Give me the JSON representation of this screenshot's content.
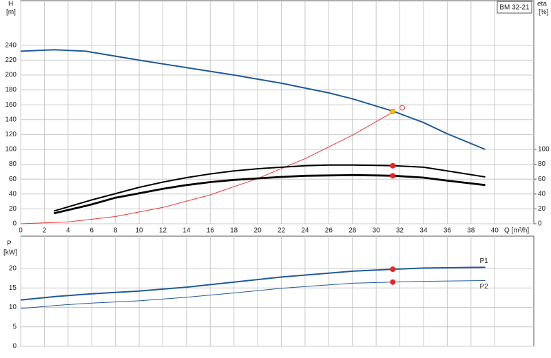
{
  "chart_data": [
    {
      "type": "line",
      "label": "BM 32-21",
      "ylabel": [
        "H",
        "[m]"
      ],
      "y2label": [
        "eta",
        "[%]"
      ],
      "xlabel": "Q [m³/h]",
      "xlim": [
        0,
        43.3
      ],
      "xticks": [
        0,
        2,
        4,
        6,
        8,
        10,
        12,
        14,
        16,
        18,
        20,
        22,
        24,
        26,
        28,
        30,
        32,
        34,
        36,
        38,
        40
      ],
      "ylim": [
        0,
        300
      ],
      "yticks": [
        0,
        20,
        40,
        60,
        80,
        100,
        120,
        140,
        160,
        180,
        200,
        220,
        240
      ],
      "y2lim": [
        0,
        300
      ],
      "y2ticks": [
        0,
        20,
        40,
        60,
        80,
        100
      ],
      "grid": true,
      "series": [
        {
          "color": "#1f5a99",
          "weight": "normal",
          "axis": "y",
          "x": [
            0,
            2.8,
            5.5,
            10,
            14,
            18,
            22,
            26,
            28,
            31.5,
            34,
            36,
            39.2
          ],
          "values": [
            232,
            234,
            232,
            220,
            210,
            200,
            189,
            176,
            168,
            151,
            136,
            121,
            100
          ]
        },
        {
          "color": "#ee3333",
          "weight": "thin",
          "axis": "y",
          "x": [
            0,
            4,
            8,
            12,
            16,
            20,
            24,
            28,
            31.5
          ],
          "values": [
            0,
            2.4,
            9.7,
            21.9,
            38.9,
            60.8,
            87.6,
            119.2,
            151
          ]
        },
        {
          "color": "#000000",
          "weight": "normal",
          "axis": "y2",
          "x": [
            2.8,
            6,
            10,
            12,
            14,
            16,
            18,
            20,
            22,
            24,
            26,
            28,
            30,
            31.5,
            34,
            36,
            39.2
          ],
          "values": [
            17,
            32,
            49,
            56,
            62,
            67,
            71,
            74,
            76,
            78,
            79,
            79,
            78.5,
            78,
            76,
            71,
            63
          ]
        },
        {
          "color": "#000000",
          "weight": "bold",
          "axis": "y2",
          "x": [
            2.8,
            6,
            8,
            10,
            12,
            14,
            16,
            18,
            20,
            22,
            24,
            26,
            28,
            30,
            31.5,
            34,
            36,
            39.2
          ],
          "values": [
            14,
            26,
            35,
            41,
            47,
            52,
            56,
            59,
            61,
            63,
            64.5,
            65,
            65.5,
            65,
            64.5,
            62,
            58,
            52
          ]
        }
      ],
      "markers": [
        {
          "x": 31.4,
          "y": 151,
          "color": "#ffc000",
          "style": "filled",
          "axis": "y"
        },
        {
          "x": 32.2,
          "y": 156,
          "color": "#ee3333",
          "style": "open",
          "axis": "y"
        },
        {
          "x": 31.4,
          "y": 78,
          "color": "#ee2222",
          "style": "filled",
          "axis": "y2"
        },
        {
          "x": 31.4,
          "y": 64.5,
          "color": "#ee2222",
          "style": "filled",
          "axis": "y2"
        }
      ]
    },
    {
      "type": "line",
      "ylabel": [
        "P",
        "[kW]"
      ],
      "xlim": [
        0,
        43.3
      ],
      "ylim": [
        0,
        28.3
      ],
      "yticks": [
        0,
        5,
        10,
        15,
        20
      ],
      "grid": true,
      "series": [
        {
          "name": "P1",
          "color": "#1f5a99",
          "weight": "normal",
          "label_side": "above",
          "x": [
            0,
            3,
            6,
            10,
            14,
            18,
            22,
            26,
            28,
            31.4,
            34,
            39.2
          ],
          "values": [
            11.9,
            12.8,
            13.5,
            14.2,
            15.2,
            16.5,
            17.8,
            18.8,
            19.3,
            19.8,
            20.1,
            20.3
          ]
        },
        {
          "name": "P2",
          "color": "#1f5a99",
          "weight": "thin",
          "label_side": "below",
          "x": [
            0,
            3,
            6,
            10,
            14,
            18,
            22,
            26,
            28,
            31.4,
            34,
            39.2
          ],
          "values": [
            9.7,
            10.5,
            11.1,
            11.7,
            12.6,
            13.7,
            14.9,
            15.8,
            16.2,
            16.5,
            16.7,
            16.9
          ]
        }
      ],
      "markers": [
        {
          "x": 31.4,
          "y": 19.8,
          "color": "#ee2222",
          "style": "filled"
        },
        {
          "x": 31.4,
          "y": 16.5,
          "color": "#ee2222",
          "style": "filled"
        }
      ]
    }
  ]
}
